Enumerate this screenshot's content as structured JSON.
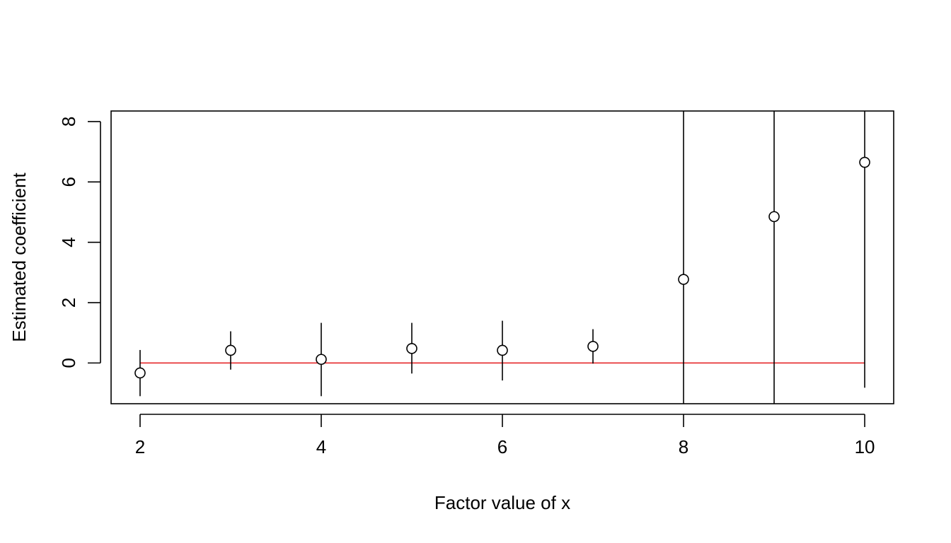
{
  "chart_data": {
    "type": "scatter",
    "title": "",
    "xlabel": "Factor value of x",
    "ylabel": "Estimated coefficient",
    "xlim": [
      1.68,
      10.32
    ],
    "ylim": [
      -1.35,
      8.35
    ],
    "x_ticks": [
      2,
      4,
      6,
      8,
      10
    ],
    "y_ticks": [
      0,
      2,
      4,
      6,
      8
    ],
    "grid": false,
    "legend": "none",
    "series": [
      {
        "marker": "open-circle",
        "color": "#000000",
        "points": [
          {
            "x": 2,
            "y": -0.33,
            "lower": -1.1,
            "upper": 0.43
          },
          {
            "x": 3,
            "y": 0.42,
            "lower": -0.22,
            "upper": 1.05
          },
          {
            "x": 4,
            "y": 0.12,
            "lower": -1.1,
            "upper": 1.33
          },
          {
            "x": 5,
            "y": 0.48,
            "lower": -0.35,
            "upper": 1.33
          },
          {
            "x": 6,
            "y": 0.42,
            "lower": -0.58,
            "upper": 1.4
          },
          {
            "x": 7,
            "y": 0.55,
            "lower": -0.02,
            "upper": 1.12
          },
          {
            "x": 8,
            "y": 2.77,
            "lower": -1.35,
            "upper": 8.35
          },
          {
            "x": 9,
            "y": 4.85,
            "lower": -1.35,
            "upper": 8.35
          },
          {
            "x": 10,
            "y": 6.65,
            "lower": -0.82,
            "upper": 8.35
          }
        ]
      }
    ],
    "reference_line": {
      "y": 0,
      "x_from": 2,
      "x_to": 10,
      "color": "#e41a1c"
    }
  }
}
